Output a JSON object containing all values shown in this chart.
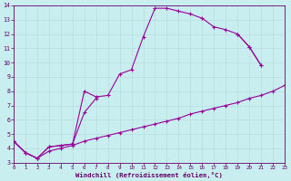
{
  "bg_color": "#c8eef0",
  "line_color": "#990099",
  "grid_color": "#b8dde0",
  "spine_color": "#660066",
  "tick_color": "#660066",
  "xlabel": "Windchill (Refroidissement éolien,°C)",
  "xlim": [
    0,
    23
  ],
  "ylim": [
    3,
    14
  ],
  "xticks": [
    0,
    1,
    2,
    3,
    4,
    5,
    6,
    7,
    8,
    9,
    10,
    11,
    12,
    13,
    14,
    15,
    16,
    17,
    18,
    19,
    20,
    21,
    22,
    23
  ],
  "yticks": [
    3,
    4,
    5,
    6,
    7,
    8,
    9,
    10,
    11,
    12,
    13,
    14
  ],
  "curve1_x": [
    0,
    1,
    2,
    3,
    4,
    5,
    6,
    7,
    8,
    9,
    10,
    11,
    12,
    13,
    14,
    15,
    16,
    17,
    18,
    19,
    20,
    21
  ],
  "curve1_y": [
    4.5,
    3.7,
    3.3,
    4.1,
    4.2,
    4.3,
    8.0,
    7.6,
    7.7,
    9.2,
    9.5,
    11.8,
    13.8,
    13.8,
    13.6,
    13.4,
    13.1,
    12.5,
    12.3,
    12.0,
    11.1,
    9.8
  ],
  "curve2_segs": [
    {
      "x": [
        0,
        1,
        2,
        3,
        4,
        5
      ],
      "y": [
        4.5,
        3.7,
        3.3,
        4.1,
        4.2,
        4.3
      ]
    },
    {
      "x": [
        5,
        6,
        7
      ],
      "y": [
        4.3,
        6.5,
        7.5
      ]
    },
    {
      "x": [
        19,
        20,
        21
      ],
      "y": [
        12.0,
        11.1,
        9.8
      ]
    }
  ],
  "curve3_x": [
    0,
    1,
    2,
    3,
    4,
    5,
    6,
    7,
    8,
    9,
    10,
    11,
    12,
    13,
    14,
    15,
    16,
    17,
    18,
    19,
    20,
    21,
    22,
    23
  ],
  "curve3_y": [
    4.5,
    3.7,
    3.3,
    3.8,
    4.0,
    4.2,
    4.5,
    4.7,
    4.9,
    5.1,
    5.3,
    5.5,
    5.7,
    5.9,
    6.1,
    6.4,
    6.6,
    6.8,
    7.0,
    7.2,
    7.5,
    7.7,
    8.0,
    8.4
  ]
}
